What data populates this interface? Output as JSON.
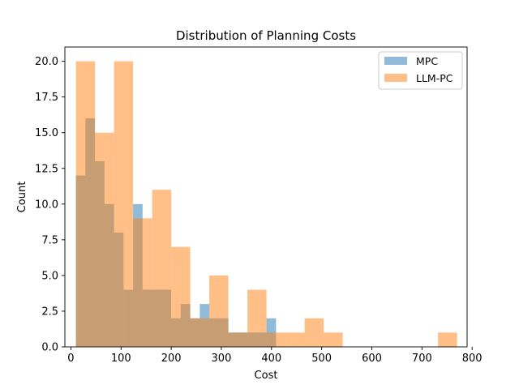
{
  "chart_data": {
    "type": "bar",
    "title": "Distribution of Planning Costs",
    "xlabel": "Cost",
    "ylabel": "Count",
    "xlim": [
      -12,
      790
    ],
    "ylim": [
      0,
      21
    ],
    "xticks": [
      0,
      100,
      200,
      300,
      400,
      500,
      600,
      700,
      800
    ],
    "yticks": [
      0.0,
      2.5,
      5.0,
      7.5,
      10.0,
      12.5,
      15.0,
      17.5,
      20.0
    ],
    "xtick_labels": [
      "0",
      "100",
      "200",
      "300",
      "400",
      "500",
      "600",
      "700",
      "800"
    ],
    "ytick_labels": [
      "0.0",
      "2.5",
      "5.0",
      "7.5",
      "10.0",
      "12.5",
      "15.0",
      "17.5",
      "20.0"
    ],
    "grid": false,
    "legend_position": "top-right",
    "series": [
      {
        "name": "MPC",
        "color": "#1f77b4",
        "opacity": 0.5,
        "bins": [
          {
            "x0": 10,
            "x1": 29,
            "count": 12
          },
          {
            "x0": 29,
            "x1": 48,
            "count": 16
          },
          {
            "x0": 48,
            "x1": 67,
            "count": 13
          },
          {
            "x0": 67,
            "x1": 86,
            "count": 10
          },
          {
            "x0": 86,
            "x1": 105,
            "count": 8
          },
          {
            "x0": 105,
            "x1": 124,
            "count": 4
          },
          {
            "x0": 124,
            "x1": 143,
            "count": 10
          },
          {
            "x0": 143,
            "x1": 162,
            "count": 4
          },
          {
            "x0": 162,
            "x1": 181,
            "count": 4
          },
          {
            "x0": 181,
            "x1": 200,
            "count": 4
          },
          {
            "x0": 200,
            "x1": 219,
            "count": 2
          },
          {
            "x0": 219,
            "x1": 238,
            "count": 3
          },
          {
            "x0": 238,
            "x1": 257,
            "count": 2
          },
          {
            "x0": 257,
            "x1": 276,
            "count": 3
          },
          {
            "x0": 276,
            "x1": 295,
            "count": 2
          },
          {
            "x0": 295,
            "x1": 314,
            "count": 2
          },
          {
            "x0": 314,
            "x1": 333,
            "count": 1
          },
          {
            "x0": 333,
            "x1": 352,
            "count": 1
          },
          {
            "x0": 352,
            "x1": 371,
            "count": 1
          },
          {
            "x0": 371,
            "x1": 390,
            "count": 1
          },
          {
            "x0": 390,
            "x1": 409,
            "count": 2
          }
        ]
      },
      {
        "name": "LLM-PC",
        "color": "#ff7f0e",
        "opacity": 0.5,
        "bins": [
          {
            "x0": 10,
            "x1": 48,
            "count": 20
          },
          {
            "x0": 48,
            "x1": 86,
            "count": 15
          },
          {
            "x0": 86,
            "x1": 124,
            "count": 20
          },
          {
            "x0": 124,
            "x1": 162,
            "count": 9
          },
          {
            "x0": 162,
            "x1": 200,
            "count": 11
          },
          {
            "x0": 200,
            "x1": 238,
            "count": 7
          },
          {
            "x0": 238,
            "x1": 276,
            "count": 2
          },
          {
            "x0": 276,
            "x1": 314,
            "count": 5
          },
          {
            "x0": 314,
            "x1": 352,
            "count": 1
          },
          {
            "x0": 352,
            "x1": 390,
            "count": 4
          },
          {
            "x0": 390,
            "x1": 428,
            "count": 1
          },
          {
            "x0": 428,
            "x1": 466,
            "count": 1
          },
          {
            "x0": 466,
            "x1": 504,
            "count": 2
          },
          {
            "x0": 504,
            "x1": 542,
            "count": 1
          },
          {
            "x0": 732,
            "x1": 770,
            "count": 1
          }
        ]
      }
    ]
  }
}
